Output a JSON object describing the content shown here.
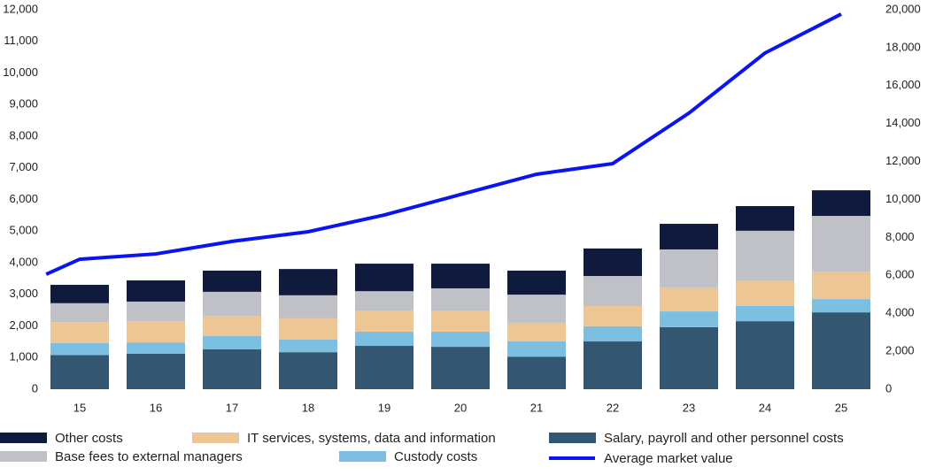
{
  "chart_data": {
    "type": "bar",
    "x": [
      15,
      16,
      17,
      18,
      19,
      20,
      21,
      22,
      23,
      24,
      25
    ],
    "xlim": [
      14.5,
      25.5
    ],
    "xticks": [
      15,
      16,
      17,
      18,
      19,
      20,
      21,
      22,
      23,
      24,
      25
    ],
    "ylim": [
      0,
      12000
    ],
    "yticks": [
      0,
      {
        "value": 1000,
        "label": "1,000"
      },
      {
        "value": 2000,
        "label": "2,000"
      },
      {
        "value": 3000,
        "label": "3,000"
      },
      {
        "value": 4000,
        "label": "4,000"
      },
      {
        "value": 5000,
        "label": "5,000"
      },
      {
        "value": 6000,
        "label": "6,000"
      },
      {
        "value": 7000,
        "label": "7,000"
      },
      {
        "value": 8000,
        "label": "8,000"
      },
      {
        "value": 9000,
        "label": "9,000"
      },
      {
        "value": 10000,
        "label": "10,000"
      },
      {
        "value": 11000,
        "label": "11,000"
      },
      {
        "value": 12000,
        "label": "12,000"
      }
    ],
    "y2lim": [
      0,
      20000
    ],
    "y2ticks": [
      0,
      {
        "value": 2000,
        "label": "2,000"
      },
      {
        "value": 4000,
        "label": "4,000"
      },
      {
        "value": 6000,
        "label": "6,000"
      },
      {
        "value": 8000,
        "label": "8,000"
      },
      {
        "value": 10000,
        "label": "10,000"
      },
      {
        "value": 12000,
        "label": "12,000"
      },
      {
        "value": 14000,
        "label": "14,000"
      },
      {
        "value": 16000,
        "label": "16,000"
      },
      {
        "value": 18000,
        "label": "18,000"
      },
      {
        "value": 20000,
        "label": "20,000"
      }
    ],
    "stacked": true,
    "series": [
      {
        "name": "Salary, payroll and other personnel costs",
        "color": "#345671",
        "values": [
          1080,
          1120,
          1260,
          1170,
          1370,
          1340,
          1030,
          1510,
          1960,
          2150,
          2430
        ]
      },
      {
        "name": "Custody costs",
        "color": "#7dbfe0",
        "values": [
          380,
          360,
          420,
          400,
          450,
          480,
          480,
          480,
          500,
          480,
          420
        ]
      },
      {
        "name": "IT services, systems, data and information",
        "color": "#ecc695",
        "values": [
          660,
          670,
          640,
          670,
          670,
          670,
          590,
          640,
          760,
          810,
          870
        ]
      },
      {
        "name": "Base fees to external managers",
        "color": "#bfc1c6",
        "values": [
          600,
          620,
          760,
          730,
          610,
          700,
          890,
          950,
          1200,
          1570,
          1760
        ]
      },
      {
        "name": "Other costs",
        "color": "#0f1a3d",
        "values": [
          580,
          670,
          670,
          830,
          870,
          780,
          760,
          870,
          810,
          780,
          810
        ]
      },
      {
        "name": "Average market value",
        "type": "line",
        "axis": "y2",
        "color": "#0a14f0",
        "x": [
          14.56,
          15,
          16,
          17,
          18,
          19,
          20,
          21,
          22,
          23,
          24,
          25
        ],
        "values": [
          6060,
          6850,
          7130,
          7790,
          8300,
          9180,
          10260,
          11330,
          11890,
          14550,
          17720,
          19770
        ]
      }
    ]
  }
}
